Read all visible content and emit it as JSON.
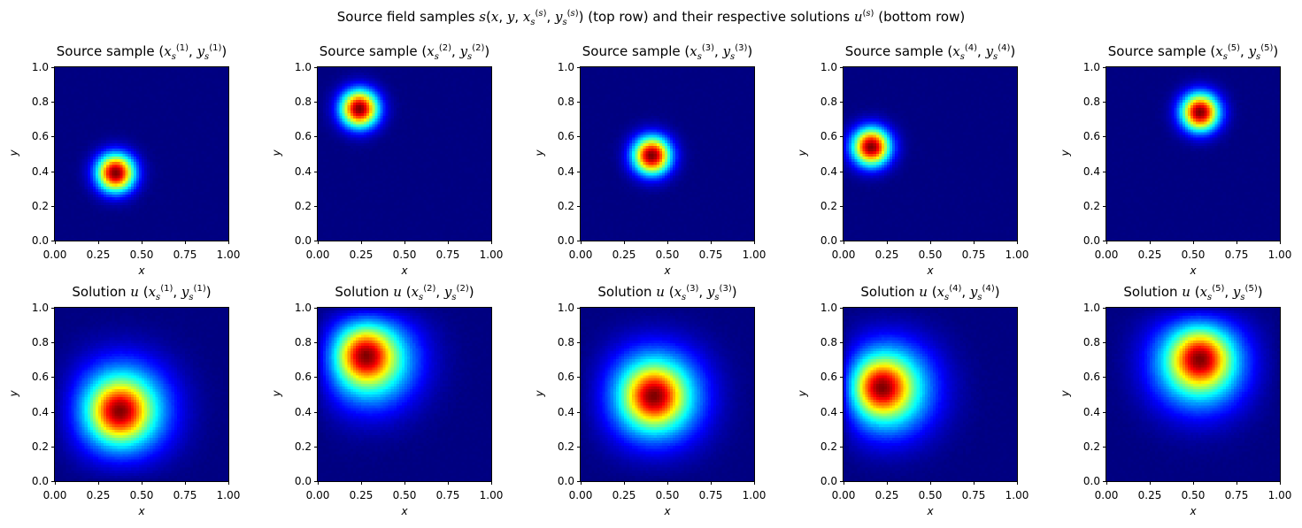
{
  "title": {
    "prefix": "Source field samples ",
    "math": "s(x, y, x_s^(s), y_s^(s))",
    "middle": " (top row) and their respective solutions ",
    "math2": "u^(s)",
    "suffix": " (bottom row)"
  },
  "chart_data": {
    "type": "heatmap",
    "colormap": "jet",
    "xlabel": "x",
    "ylabel": "y",
    "xlim": [
      0,
      1
    ],
    "ylim": [
      0,
      1
    ],
    "xticks": [
      "0.00",
      "0.25",
      "0.50",
      "0.75",
      "1.00"
    ],
    "yticks": [
      "0.0",
      "0.2",
      "0.4",
      "0.6",
      "0.8",
      "1.0"
    ],
    "rows": [
      {
        "row": "top",
        "title_label": "Source sample",
        "panels": [
          {
            "index": "1",
            "peak_x": 0.35,
            "peak_y": 0.39
          },
          {
            "index": "2",
            "peak_x": 0.24,
            "peak_y": 0.76
          },
          {
            "index": "3",
            "peak_x": 0.41,
            "peak_y": 0.49
          },
          {
            "index": "4",
            "peak_x": 0.16,
            "peak_y": 0.54
          },
          {
            "index": "5",
            "peak_x": 0.54,
            "peak_y": 0.74
          }
        ]
      },
      {
        "row": "bottom",
        "title_label": "Solution",
        "panels": [
          {
            "index": "1",
            "peak_x": 0.37,
            "peak_y": 0.4
          },
          {
            "index": "2",
            "peak_x": 0.27,
            "peak_y": 0.73
          },
          {
            "index": "3",
            "peak_x": 0.42,
            "peak_y": 0.49
          },
          {
            "index": "4",
            "peak_x": 0.21,
            "peak_y": 0.54
          },
          {
            "index": "5",
            "peak_x": 0.54,
            "peak_y": 0.71
          }
        ]
      }
    ]
  }
}
